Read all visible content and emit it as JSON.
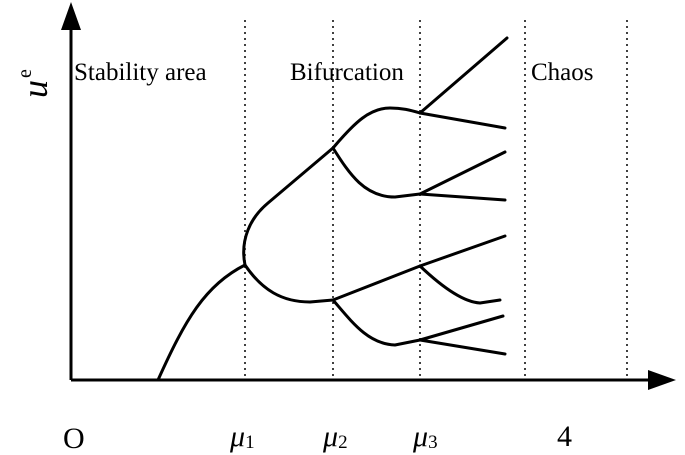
{
  "regions": {
    "stability": "Stability area",
    "bifurcation": "Bifurcation",
    "chaos": "Chaos"
  },
  "axes": {
    "y_label": "u",
    "y_label_sup": "e",
    "origin": "O",
    "ticks": [
      {
        "base": "μ",
        "sub": "1"
      },
      {
        "base": "μ",
        "sub": "2"
      },
      {
        "base": "μ",
        "sub": "3"
      }
    ],
    "last_tick": "4"
  }
}
